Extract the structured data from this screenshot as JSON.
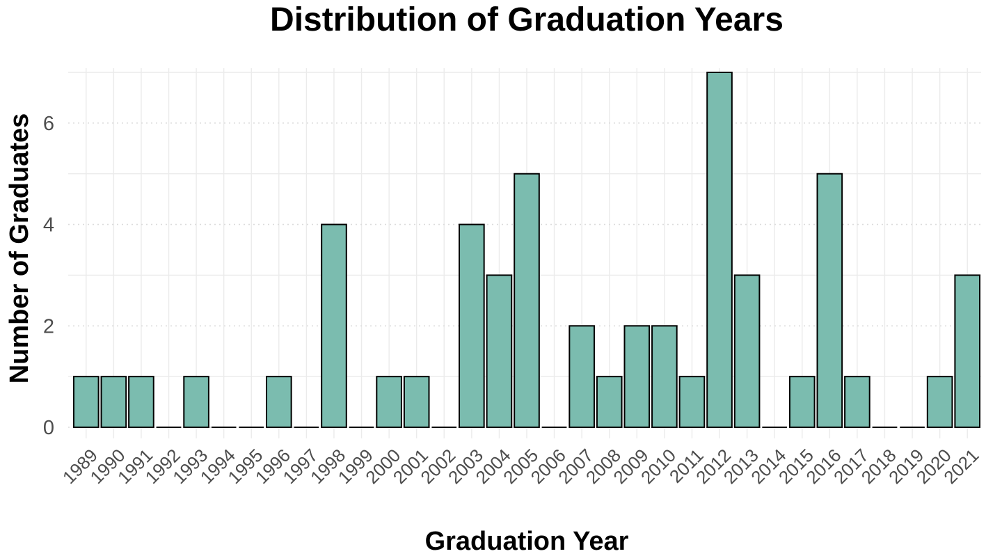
{
  "chart_data": {
    "type": "bar",
    "title": "Distribution of Graduation Years",
    "xlabel": "Graduation Year",
    "ylabel": "Number of Graduates",
    "categories": [
      "1989",
      "1990",
      "1991",
      "1992",
      "1993",
      "1994",
      "1995",
      "1996",
      "1997",
      "1998",
      "1999",
      "2000",
      "2001",
      "2002",
      "2003",
      "2004",
      "2005",
      "2006",
      "2007",
      "2008",
      "2009",
      "2010",
      "2011",
      "2012",
      "2013",
      "2014",
      "2015",
      "2016",
      "2017",
      "2018",
      "2019",
      "2020",
      "2021"
    ],
    "values": [
      1,
      1,
      1,
      0,
      1,
      0,
      0,
      1,
      0,
      4,
      0,
      1,
      1,
      0,
      4,
      3,
      5,
      0,
      2,
      1,
      2,
      2,
      1,
      7,
      3,
      0,
      1,
      5,
      1,
      0,
      0,
      1,
      3
    ],
    "ylim": [
      0,
      7
    ],
    "yticks": [
      0,
      2,
      4,
      6
    ],
    "grid": true,
    "legend": "none",
    "bar_color": "#7bbcaf",
    "bar_outline": "#000000"
  }
}
